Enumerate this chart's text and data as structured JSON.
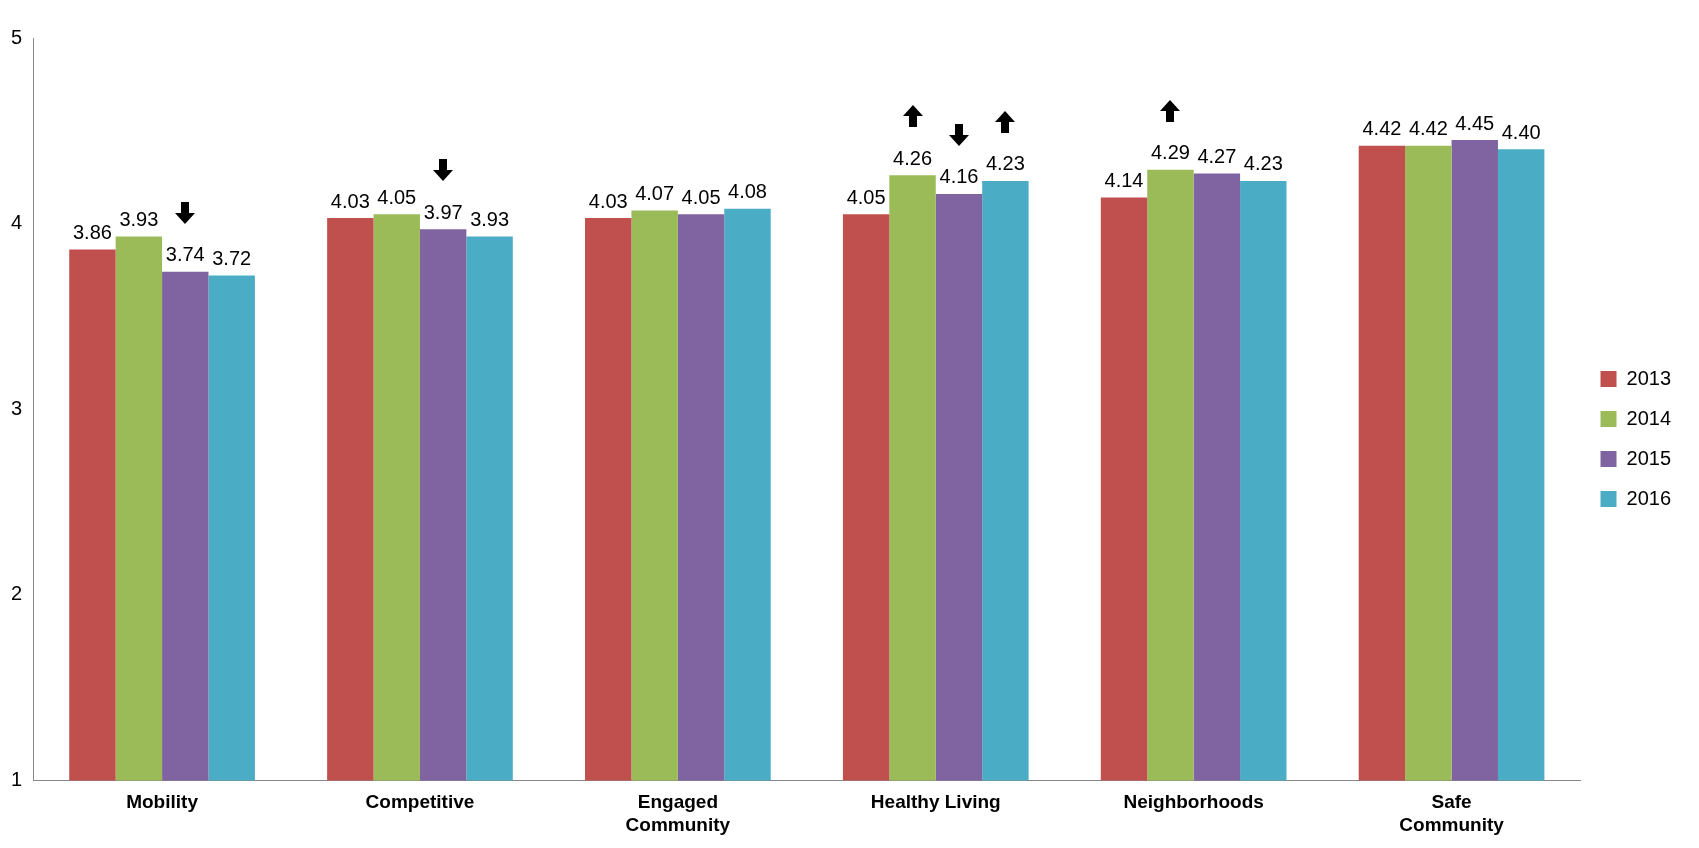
{
  "chart_data": {
    "type": "bar",
    "categories": [
      "Mobility",
      "Competitive",
      "Engaged\nCommunity",
      "Healthy Living",
      "Neighborhoods",
      "Safe\nCommunity"
    ],
    "series": [
      {
        "name": "2013",
        "color": "#c0504d",
        "values": [
          3.86,
          4.03,
          4.03,
          4.05,
          4.14,
          4.42
        ],
        "value_labels": [
          "3.86",
          "4.03",
          "4.03",
          "4.05",
          "4.14",
          "4.42"
        ]
      },
      {
        "name": "2014",
        "color": "#9bbb59",
        "values": [
          3.93,
          4.05,
          4.07,
          4.26,
          4.29,
          4.42
        ],
        "value_labels": [
          "3.93",
          "4.05",
          "4.07",
          "4.26",
          "4.29",
          "4.42"
        ]
      },
      {
        "name": "2015",
        "color": "#8064a2",
        "values": [
          3.74,
          3.97,
          4.05,
          4.16,
          4.27,
          4.45
        ],
        "value_labels": [
          "3.74",
          "3.97",
          "4.05",
          "4.16",
          "4.27",
          "4.45"
        ]
      },
      {
        "name": "2016",
        "color": "#4bacc6",
        "values": [
          3.72,
          3.93,
          4.08,
          4.23,
          4.23,
          4.4
        ],
        "value_labels": [
          "3.72",
          "3.93",
          "4.08",
          "4.23",
          "4.23",
          "4.40"
        ]
      }
    ],
    "ylim": [
      1,
      5
    ],
    "yticks": [
      1,
      2,
      3,
      4,
      5
    ],
    "grid": false,
    "legend": "right"
  }
}
